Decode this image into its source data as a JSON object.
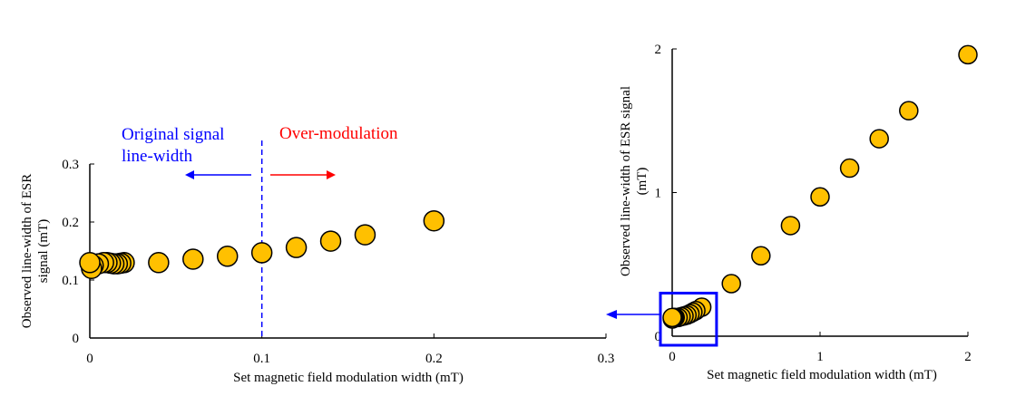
{
  "colors": {
    "marker_fill": "#FFC000",
    "marker_edge": "#000000",
    "annotation_blue": "#0000FF",
    "annotation_red": "#FF0000"
  },
  "chart_data": [
    {
      "type": "scatter",
      "xlabel": "Set magnetic field modulation width (mT)",
      "ylabel": "Observed line-width of ESR signal (mT)",
      "xlim": [
        0,
        0.3
      ],
      "ylim": [
        0,
        0.3
      ],
      "xticks": [
        "0",
        "0.1",
        "0.2",
        "0.3"
      ],
      "yticks": [
        "0",
        "0.1",
        "0.2",
        "0.3"
      ],
      "grid": false,
      "x": [
        0,
        0.001,
        0.002,
        0.005,
        0.008,
        0.01,
        0.012,
        0.014,
        0.016,
        0.018,
        0.02,
        0.04,
        0.06,
        0.08,
        0.1,
        0.12,
        0.14,
        0.16,
        0.2
      ],
      "y": [
        0.13,
        0.12,
        0.125,
        0.128,
        0.13,
        0.13,
        0.129,
        0.128,
        0.128,
        0.129,
        0.13,
        0.13,
        0.136,
        0.141,
        0.147,
        0.156,
        0.167,
        0.178,
        0.202
      ],
      "annotations": {
        "vline_x": 0.1,
        "left_text": [
          "Original signal",
          "line-width"
        ],
        "right_text": "Over-modulation"
      }
    },
    {
      "type": "scatter",
      "xlabel": "Set magnetic field modulation width (mT)",
      "ylabel": "Observed line-width of ESR signal (mT)",
      "xlim": [
        0,
        2
      ],
      "ylim": [
        0,
        2
      ],
      "xticks": [
        "0",
        "1",
        "2"
      ],
      "yticks": [
        "0",
        "1",
        "2"
      ],
      "grid": false,
      "x": [
        0,
        0.001,
        0.002,
        0.005,
        0.008,
        0.01,
        0.012,
        0.014,
        0.016,
        0.018,
        0.02,
        0.04,
        0.06,
        0.08,
        0.1,
        0.12,
        0.14,
        0.16,
        0.2,
        0.4,
        0.6,
        0.8,
        1.0,
        1.2,
        1.4,
        1.6,
        2.0
      ],
      "y": [
        0.13,
        0.12,
        0.125,
        0.128,
        0.13,
        0.13,
        0.129,
        0.128,
        0.128,
        0.129,
        0.13,
        0.13,
        0.136,
        0.141,
        0.147,
        0.156,
        0.167,
        0.178,
        0.202,
        0.366,
        0.56,
        0.77,
        0.97,
        1.17,
        1.375,
        1.57,
        1.96
      ],
      "inset_box": {
        "xlim": [
          0,
          0.3
        ],
        "ylim": [
          0,
          0.3
        ]
      }
    }
  ]
}
